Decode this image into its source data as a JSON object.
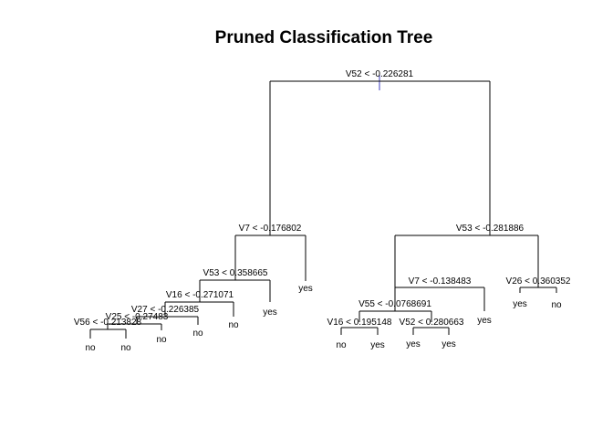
{
  "title": "Pruned Classification Tree",
  "tree": {
    "split": "V52 < -0.226281",
    "left": {
      "split": "V7 < -0.176802",
      "left": {
        "split": "V53 < 0.358665",
        "left": {
          "split": "V16 < -0.271071",
          "left": {
            "split": "V27 < -0.226385",
            "left": {
              "split": "V25 < -0.27483",
              "left": {
                "split": "V56 < -0.213828",
                "left": {
                  "leaf": "no"
                },
                "right": {
                  "leaf": "no"
                }
              },
              "right": {
                "leaf": "no"
              }
            },
            "right": {
              "leaf": "no"
            }
          },
          "right": {
            "leaf": "no"
          }
        },
        "right": {
          "leaf": "yes"
        }
      },
      "right": {
        "leaf": "yes"
      }
    },
    "right": {
      "split": "V53 < -0.281886",
      "left": {
        "split": "V7 < -0.138483",
        "left": {
          "split": "V55 < -0.0768691",
          "left": {
            "split": "V16 < 0.195148",
            "left": {
              "leaf": "no"
            },
            "right": {
              "leaf": "yes"
            }
          },
          "right": {
            "split": "V52 < 0.280663",
            "left": {
              "leaf": "yes"
            },
            "right": {
              "leaf": "yes"
            }
          }
        },
        "right": {
          "leaf": "yes"
        }
      },
      "right": {
        "split": "V26 < 0.360352",
        "left": {
          "leaf": "yes"
        },
        "right": {
          "leaf": "no"
        }
      }
    }
  }
}
